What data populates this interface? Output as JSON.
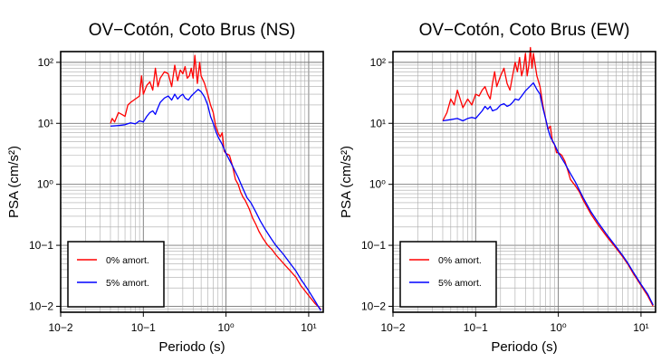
{
  "chart_data": [
    {
      "type": "line",
      "title": "OV−Cotón, Coto Brus (NS)",
      "xlabel": "Periodo (s)",
      "ylabel": "PSA (cm/s²)",
      "xscale": "log",
      "yscale": "log",
      "xlim": [
        0.01,
        15
      ],
      "ylim": [
        0.008,
        150
      ],
      "x_ticks": [
        "10−2",
        "10−1",
        "10⁰",
        "10¹"
      ],
      "y_ticks": [
        "10−2",
        "10−1",
        "10⁰",
        "10¹",
        "10²"
      ],
      "grid": true,
      "legend_position": "bottom-left",
      "series": [
        {
          "name": "0% amort.",
          "color": "#ff0000",
          "points": [
            [
              0.04,
              10
            ],
            [
              0.042,
              12
            ],
            [
              0.045,
              10.5
            ],
            [
              0.05,
              15
            ],
            [
              0.055,
              14
            ],
            [
              0.06,
              13
            ],
            [
              0.065,
              20
            ],
            [
              0.07,
              22
            ],
            [
              0.08,
              25
            ],
            [
              0.09,
              28
            ],
            [
              0.095,
              60
            ],
            [
              0.1,
              30
            ],
            [
              0.11,
              42
            ],
            [
              0.12,
              48
            ],
            [
              0.13,
              35
            ],
            [
              0.14,
              80
            ],
            [
              0.15,
              40
            ],
            [
              0.16,
              55
            ],
            [
              0.18,
              70
            ],
            [
              0.2,
              65
            ],
            [
              0.22,
              40
            ],
            [
              0.24,
              90
            ],
            [
              0.26,
              50
            ],
            [
              0.28,
              75
            ],
            [
              0.3,
              65
            ],
            [
              0.32,
              85
            ],
            [
              0.34,
              55
            ],
            [
              0.36,
              60
            ],
            [
              0.38,
              80
            ],
            [
              0.4,
              55
            ],
            [
              0.42,
              130
            ],
            [
              0.45,
              45
            ],
            [
              0.48,
              100
            ],
            [
              0.5,
              60
            ],
            [
              0.55,
              45
            ],
            [
              0.6,
              30
            ],
            [
              0.65,
              20
            ],
            [
              0.7,
              15
            ],
            [
              0.75,
              9
            ],
            [
              0.8,
              7
            ],
            [
              0.85,
              6
            ],
            [
              0.9,
              7
            ],
            [
              0.95,
              3.5
            ],
            [
              1.0,
              3.2
            ],
            [
              1.1,
              3.0
            ],
            [
              1.2,
              2.0
            ],
            [
              1.3,
              1.2
            ],
            [
              1.4,
              1.0
            ],
            [
              1.5,
              0.75
            ],
            [
              1.6,
              0.62
            ],
            [
              1.7,
              0.55
            ],
            [
              1.9,
              0.4
            ],
            [
              2.1,
              0.28
            ],
            [
              2.3,
              0.22
            ],
            [
              2.5,
              0.17
            ],
            [
              2.8,
              0.13
            ],
            [
              3.2,
              0.1
            ],
            [
              3.6,
              0.085
            ],
            [
              4.0,
              0.07
            ],
            [
              5.0,
              0.05
            ],
            [
              6.0,
              0.038
            ],
            [
              7.0,
              0.03
            ],
            [
              8.0,
              0.022
            ],
            [
              10.0,
              0.015
            ],
            [
              12.0,
              0.011
            ],
            [
              14.0,
              0.009
            ]
          ]
        },
        {
          "name": "5% amort.",
          "color": "#0000ff",
          "points": [
            [
              0.04,
              9
            ],
            [
              0.05,
              9.2
            ],
            [
              0.06,
              9.5
            ],
            [
              0.07,
              10.2
            ],
            [
              0.08,
              9.8
            ],
            [
              0.09,
              11
            ],
            [
              0.1,
              10.5
            ],
            [
              0.11,
              13
            ],
            [
              0.12,
              15
            ],
            [
              0.13,
              16
            ],
            [
              0.14,
              14
            ],
            [
              0.15,
              18
            ],
            [
              0.16,
              22
            ],
            [
              0.18,
              26
            ],
            [
              0.2,
              28
            ],
            [
              0.22,
              24
            ],
            [
              0.24,
              30
            ],
            [
              0.26,
              25
            ],
            [
              0.28,
              28
            ],
            [
              0.3,
              30
            ],
            [
              0.32,
              26
            ],
            [
              0.35,
              24
            ],
            [
              0.38,
              28
            ],
            [
              0.42,
              32
            ],
            [
              0.46,
              36
            ],
            [
              0.5,
              33
            ],
            [
              0.55,
              27
            ],
            [
              0.6,
              20
            ],
            [
              0.65,
              13
            ],
            [
              0.7,
              10
            ],
            [
              0.75,
              7.5
            ],
            [
              0.8,
              6
            ],
            [
              0.9,
              4.5
            ],
            [
              1.0,
              3.2
            ],
            [
              1.2,
              2.0
            ],
            [
              1.4,
              1.3
            ],
            [
              1.6,
              0.85
            ],
            [
              1.8,
              0.6
            ],
            [
              2.0,
              0.5
            ],
            [
              2.3,
              0.35
            ],
            [
              2.6,
              0.25
            ],
            [
              3.0,
              0.18
            ],
            [
              3.5,
              0.13
            ],
            [
              4.0,
              0.1
            ],
            [
              5.0,
              0.07
            ],
            [
              6.0,
              0.05
            ],
            [
              7.0,
              0.038
            ],
            [
              8.0,
              0.028
            ],
            [
              10.0,
              0.018
            ],
            [
              12.0,
              0.012
            ],
            [
              14.0,
              0.0085
            ]
          ]
        }
      ]
    },
    {
      "type": "line",
      "title": "OV−Cotón, Coto Brus (EW)",
      "xlabel": "Periodo (s)",
      "ylabel": "PSA (cm/s²)",
      "xscale": "log",
      "yscale": "log",
      "xlim": [
        0.01,
        15
      ],
      "ylim": [
        0.008,
        150
      ],
      "x_ticks": [
        "10−2",
        "10−1",
        "10⁰",
        "10¹"
      ],
      "y_ticks": [
        "10−2",
        "10−1",
        "10⁰",
        "10¹",
        "10²"
      ],
      "grid": true,
      "legend_position": "bottom-left",
      "series": [
        {
          "name": "0% amort.",
          "color": "#ff0000",
          "points": [
            [
              0.04,
              11
            ],
            [
              0.045,
              15
            ],
            [
              0.05,
              25
            ],
            [
              0.055,
              20
            ],
            [
              0.06,
              35
            ],
            [
              0.065,
              25
            ],
            [
              0.07,
              18
            ],
            [
              0.08,
              25
            ],
            [
              0.09,
              20
            ],
            [
              0.1,
              30
            ],
            [
              0.11,
              28
            ],
            [
              0.12,
              35
            ],
            [
              0.13,
              40
            ],
            [
              0.14,
              30
            ],
            [
              0.15,
              25
            ],
            [
              0.16,
              45
            ],
            [
              0.17,
              70
            ],
            [
              0.18,
              40
            ],
            [
              0.2,
              60
            ],
            [
              0.22,
              80
            ],
            [
              0.24,
              45
            ],
            [
              0.26,
              35
            ],
            [
              0.28,
              60
            ],
            [
              0.3,
              100
            ],
            [
              0.32,
              70
            ],
            [
              0.34,
              120
            ],
            [
              0.36,
              60
            ],
            [
              0.38,
              80
            ],
            [
              0.4,
              140
            ],
            [
              0.42,
              60
            ],
            [
              0.44,
              90
            ],
            [
              0.46,
              175
            ],
            [
              0.48,
              80
            ],
            [
              0.5,
              140
            ],
            [
              0.55,
              60
            ],
            [
              0.6,
              40
            ],
            [
              0.65,
              20
            ],
            [
              0.7,
              12
            ],
            [
              0.75,
              8
            ],
            [
              0.8,
              9
            ],
            [
              0.85,
              5
            ],
            [
              0.9,
              4.5
            ],
            [
              0.95,
              3.3
            ],
            [
              1.0,
              3.3
            ],
            [
              1.1,
              3.0
            ],
            [
              1.2,
              2.4
            ],
            [
              1.3,
              1.7
            ],
            [
              1.4,
              1.2
            ],
            [
              1.6,
              0.95
            ],
            [
              1.8,
              0.75
            ],
            [
              2.0,
              0.55
            ],
            [
              2.5,
              0.32
            ],
            [
              3.0,
              0.22
            ],
            [
              4.0,
              0.13
            ],
            [
              5.0,
              0.09
            ],
            [
              6.0,
              0.065
            ],
            [
              7.0,
              0.048
            ],
            [
              8.0,
              0.035
            ],
            [
              10.0,
              0.022
            ],
            [
              12.0,
              0.015
            ],
            [
              14.0,
              0.01
            ]
          ]
        },
        {
          "name": "5% amort.",
          "color": "#0000ff",
          "points": [
            [
              0.04,
              11
            ],
            [
              0.05,
              11.5
            ],
            [
              0.06,
              12
            ],
            [
              0.07,
              11
            ],
            [
              0.08,
              12
            ],
            [
              0.09,
              12.5
            ],
            [
              0.1,
              12
            ],
            [
              0.11,
              14
            ],
            [
              0.12,
              16
            ],
            [
              0.13,
              19
            ],
            [
              0.14,
              17
            ],
            [
              0.15,
              19
            ],
            [
              0.16,
              16
            ],
            [
              0.18,
              17
            ],
            [
              0.2,
              20
            ],
            [
              0.22,
              21
            ],
            [
              0.24,
              19
            ],
            [
              0.26,
              20
            ],
            [
              0.28,
              22
            ],
            [
              0.3,
              25
            ],
            [
              0.33,
              24
            ],
            [
              0.36,
              28
            ],
            [
              0.4,
              34
            ],
            [
              0.45,
              40
            ],
            [
              0.5,
              46
            ],
            [
              0.55,
              36
            ],
            [
              0.6,
              30
            ],
            [
              0.65,
              18
            ],
            [
              0.7,
              12
            ],
            [
              0.75,
              8
            ],
            [
              0.8,
              6
            ],
            [
              0.9,
              4.5
            ],
            [
              1.0,
              3.3
            ],
            [
              1.2,
              2.2
            ],
            [
              1.4,
              1.5
            ],
            [
              1.6,
              1.1
            ],
            [
              1.8,
              0.8
            ],
            [
              2.0,
              0.6
            ],
            [
              2.5,
              0.35
            ],
            [
              3.0,
              0.24
            ],
            [
              4.0,
              0.14
            ],
            [
              5.0,
              0.095
            ],
            [
              6.0,
              0.068
            ],
            [
              7.0,
              0.05
            ],
            [
              8.0,
              0.037
            ],
            [
              10.0,
              0.023
            ],
            [
              12.0,
              0.016
            ],
            [
              14.0,
              0.0105
            ]
          ]
        }
      ]
    }
  ]
}
